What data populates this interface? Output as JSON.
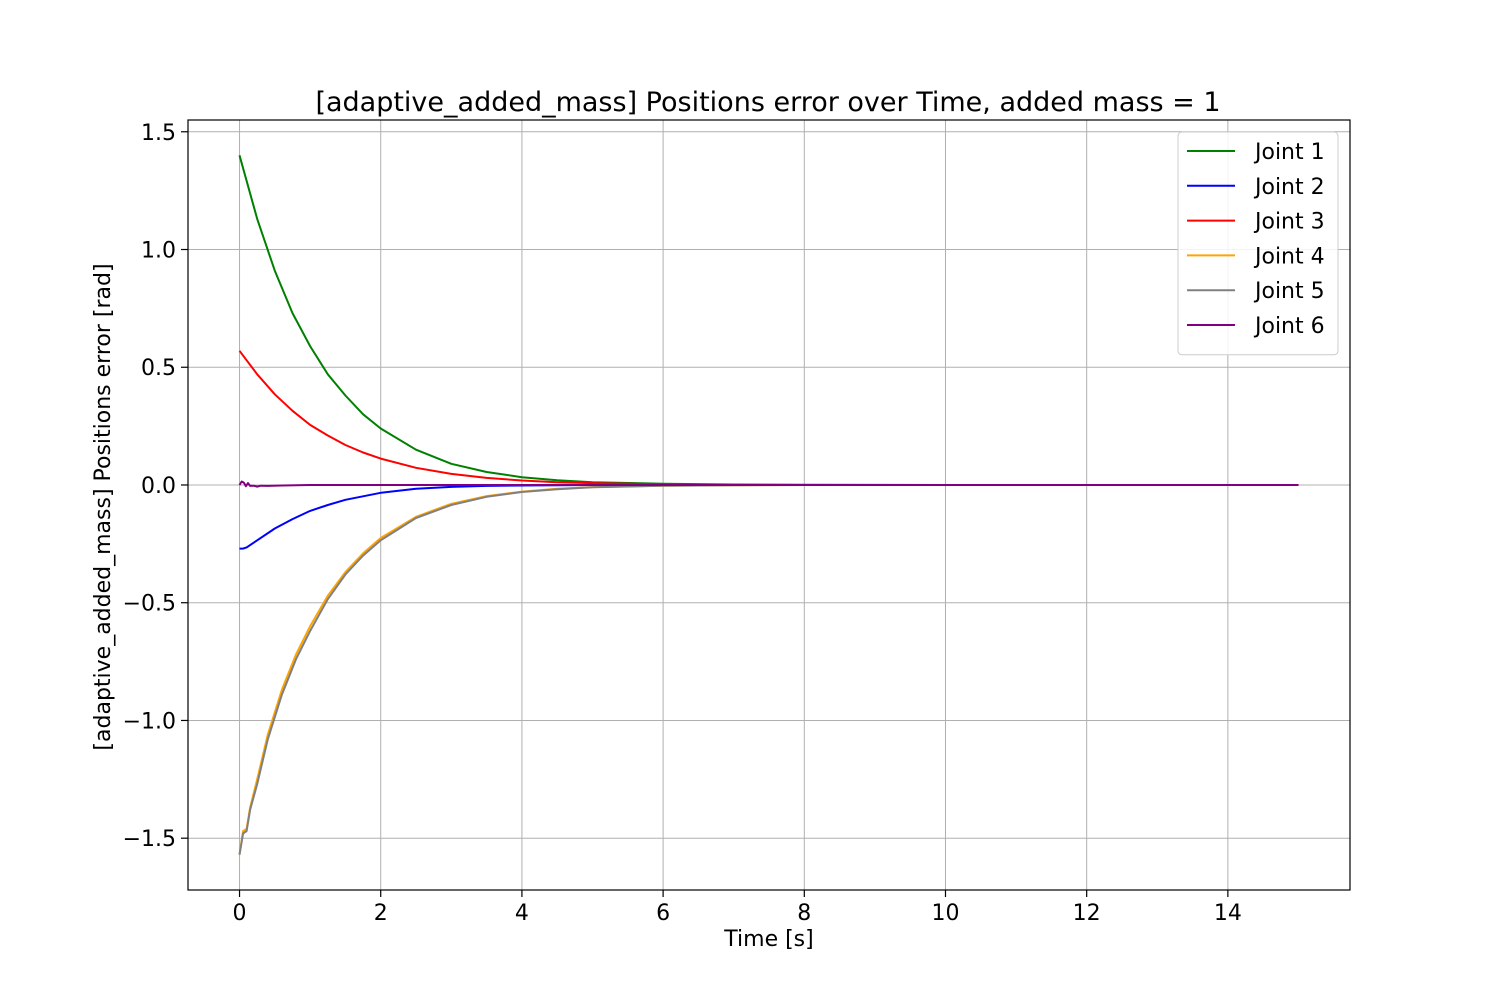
{
  "chart_data": {
    "type": "line",
    "title": "[adaptive_added_mass] Positions error over Time, added mass = 1",
    "xlabel": "Time [s]",
    "ylabel": "[adaptive_added_mass] Positions error [rad]",
    "xlim": [
      -0.73,
      15.73
    ],
    "ylim": [
      -1.72,
      1.55
    ],
    "xticks": [
      0,
      2,
      4,
      6,
      8,
      10,
      12,
      14
    ],
    "xtick_labels": [
      "0",
      "2",
      "4",
      "6",
      "8",
      "10",
      "12",
      "14"
    ],
    "yticks": [
      -1.5,
      -1.0,
      -0.5,
      0.0,
      0.5,
      1.0,
      1.5
    ],
    "ytick_labels": [
      "−1.5",
      "−1.0",
      "−0.5",
      "0.0",
      "0.5",
      "1.0",
      "1.5"
    ],
    "grid": true,
    "legend_position": "top-right",
    "series": [
      {
        "name": "Joint 1",
        "color": "#008000",
        "x": [
          0,
          0.25,
          0.5,
          0.75,
          1,
          1.25,
          1.5,
          1.75,
          2,
          2.5,
          3,
          3.5,
          4,
          4.5,
          5,
          6,
          7,
          8,
          10,
          12,
          15
        ],
        "y": [
          1.4,
          1.13,
          0.91,
          0.73,
          0.59,
          0.47,
          0.38,
          0.3,
          0.24,
          0.15,
          0.09,
          0.055,
          0.033,
          0.02,
          0.012,
          0.005,
          0.002,
          0.001,
          0,
          0,
          0
        ]
      },
      {
        "name": "Joint 2",
        "color": "#0000ff",
        "x": [
          0,
          0.05,
          0.1,
          0.25,
          0.5,
          0.75,
          1,
          1.25,
          1.5,
          2,
          2.5,
          3,
          3.5,
          4,
          5,
          6,
          8,
          10,
          15
        ],
        "y": [
          -0.27,
          -0.27,
          -0.265,
          -0.235,
          -0.185,
          -0.145,
          -0.11,
          -0.085,
          -0.063,
          -0.033,
          -0.016,
          -0.008,
          -0.004,
          -0.002,
          0,
          0,
          0,
          0,
          0
        ]
      },
      {
        "name": "Joint 3",
        "color": "#ff0000",
        "x": [
          0,
          0.25,
          0.5,
          0.75,
          1,
          1.25,
          1.5,
          1.75,
          2,
          2.5,
          3,
          3.5,
          4,
          4.5,
          5,
          6,
          7,
          8,
          10,
          12,
          15
        ],
        "y": [
          0.57,
          0.47,
          0.385,
          0.315,
          0.255,
          0.21,
          0.17,
          0.138,
          0.112,
          0.073,
          0.047,
          0.03,
          0.019,
          0.012,
          0.008,
          0.003,
          0.001,
          0,
          0,
          0,
          0
        ]
      },
      {
        "name": "Joint 4",
        "color": "#ffa500",
        "x": [
          0,
          0.05,
          0.1,
          0.15,
          0.25,
          0.4,
          0.6,
          0.8,
          1,
          1.25,
          1.5,
          1.75,
          2,
          2.5,
          3,
          3.5,
          4,
          4.5,
          5,
          6,
          7,
          8,
          10,
          12,
          15
        ],
        "y": [
          -1.57,
          -1.47,
          -1.46,
          -1.37,
          -1.25,
          -1.06,
          -0.87,
          -0.72,
          -0.6,
          -0.47,
          -0.37,
          -0.29,
          -0.225,
          -0.135,
          -0.08,
          -0.047,
          -0.028,
          -0.016,
          -0.009,
          -0.003,
          -0.001,
          0,
          0,
          0,
          0
        ]
      },
      {
        "name": "Joint 5",
        "color": "#808080",
        "x": [
          0,
          0.05,
          0.1,
          0.15,
          0.25,
          0.4,
          0.6,
          0.8,
          1,
          1.25,
          1.5,
          1.75,
          2,
          2.5,
          3,
          3.5,
          4,
          4.5,
          5,
          6,
          7,
          8,
          10,
          12,
          15
        ],
        "y": [
          -1.57,
          -1.48,
          -1.47,
          -1.38,
          -1.27,
          -1.08,
          -0.89,
          -0.74,
          -0.62,
          -0.485,
          -0.38,
          -0.3,
          -0.235,
          -0.14,
          -0.085,
          -0.05,
          -0.03,
          -0.018,
          -0.01,
          -0.003,
          -0.001,
          0,
          0,
          0,
          0
        ]
      },
      {
        "name": "Joint 6",
        "color": "#800080",
        "x": [
          0,
          0.03,
          0.06,
          0.09,
          0.12,
          0.15,
          0.2,
          0.25,
          0.3,
          0.4,
          0.6,
          1,
          2,
          5,
          10,
          15
        ],
        "y": [
          0.0,
          0.015,
          0.01,
          -0.005,
          0.008,
          -0.004,
          -0.003,
          -0.007,
          -0.003,
          -0.004,
          -0.002,
          0,
          0,
          0,
          0,
          0
        ]
      }
    ]
  }
}
